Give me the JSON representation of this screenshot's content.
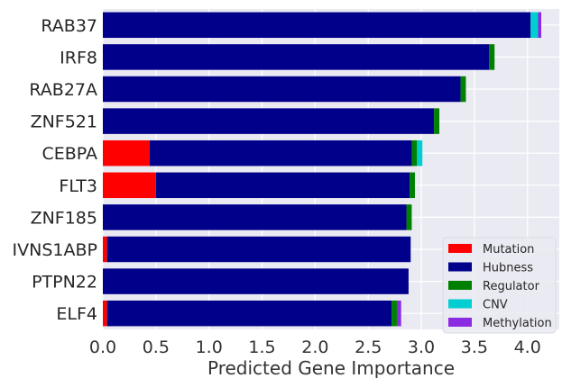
{
  "chart_data": {
    "type": "bar",
    "orientation": "horizontal",
    "stacked": true,
    "xlabel": "Predicted Gene Importance",
    "ylabel": "",
    "xlim": [
      0,
      4.3
    ],
    "xticks": [
      "0.0",
      "0.5",
      "1.0",
      "1.5",
      "2.0",
      "2.5",
      "3.0",
      "3.5",
      "4.0"
    ],
    "grid": true,
    "legend_position": "lower-right",
    "categories": [
      "RAB37",
      "IRF8",
      "RAB27A",
      "ZNF521",
      "CEBPA",
      "FLT3",
      "ZNF185",
      "IVNS1ABP",
      "PTPN22",
      "ELF4"
    ],
    "series": [
      {
        "name": "Mutation",
        "color": "#ff0000",
        "values": [
          0,
          0,
          0,
          0,
          0.44,
          0.5,
          0,
          0.04,
          0,
          0.04
        ]
      },
      {
        "name": "Hubness",
        "color": "#00008b",
        "values": [
          4.03,
          3.64,
          3.37,
          3.12,
          2.47,
          2.39,
          2.86,
          2.86,
          2.88,
          2.68
        ]
      },
      {
        "name": "Regulator",
        "color": "#008000",
        "values": [
          0,
          0.05,
          0.05,
          0.05,
          0.05,
          0.05,
          0.05,
          0,
          0,
          0.05
        ]
      },
      {
        "name": "CNV",
        "color": "#00ced1",
        "values": [
          0.07,
          0,
          0,
          0,
          0.05,
          0,
          0,
          0,
          0,
          0
        ]
      },
      {
        "name": "Methylation",
        "color": "#8a2be2",
        "values": [
          0.03,
          0,
          0,
          0,
          0,
          0,
          0,
          0,
          0,
          0.04
        ]
      }
    ]
  }
}
